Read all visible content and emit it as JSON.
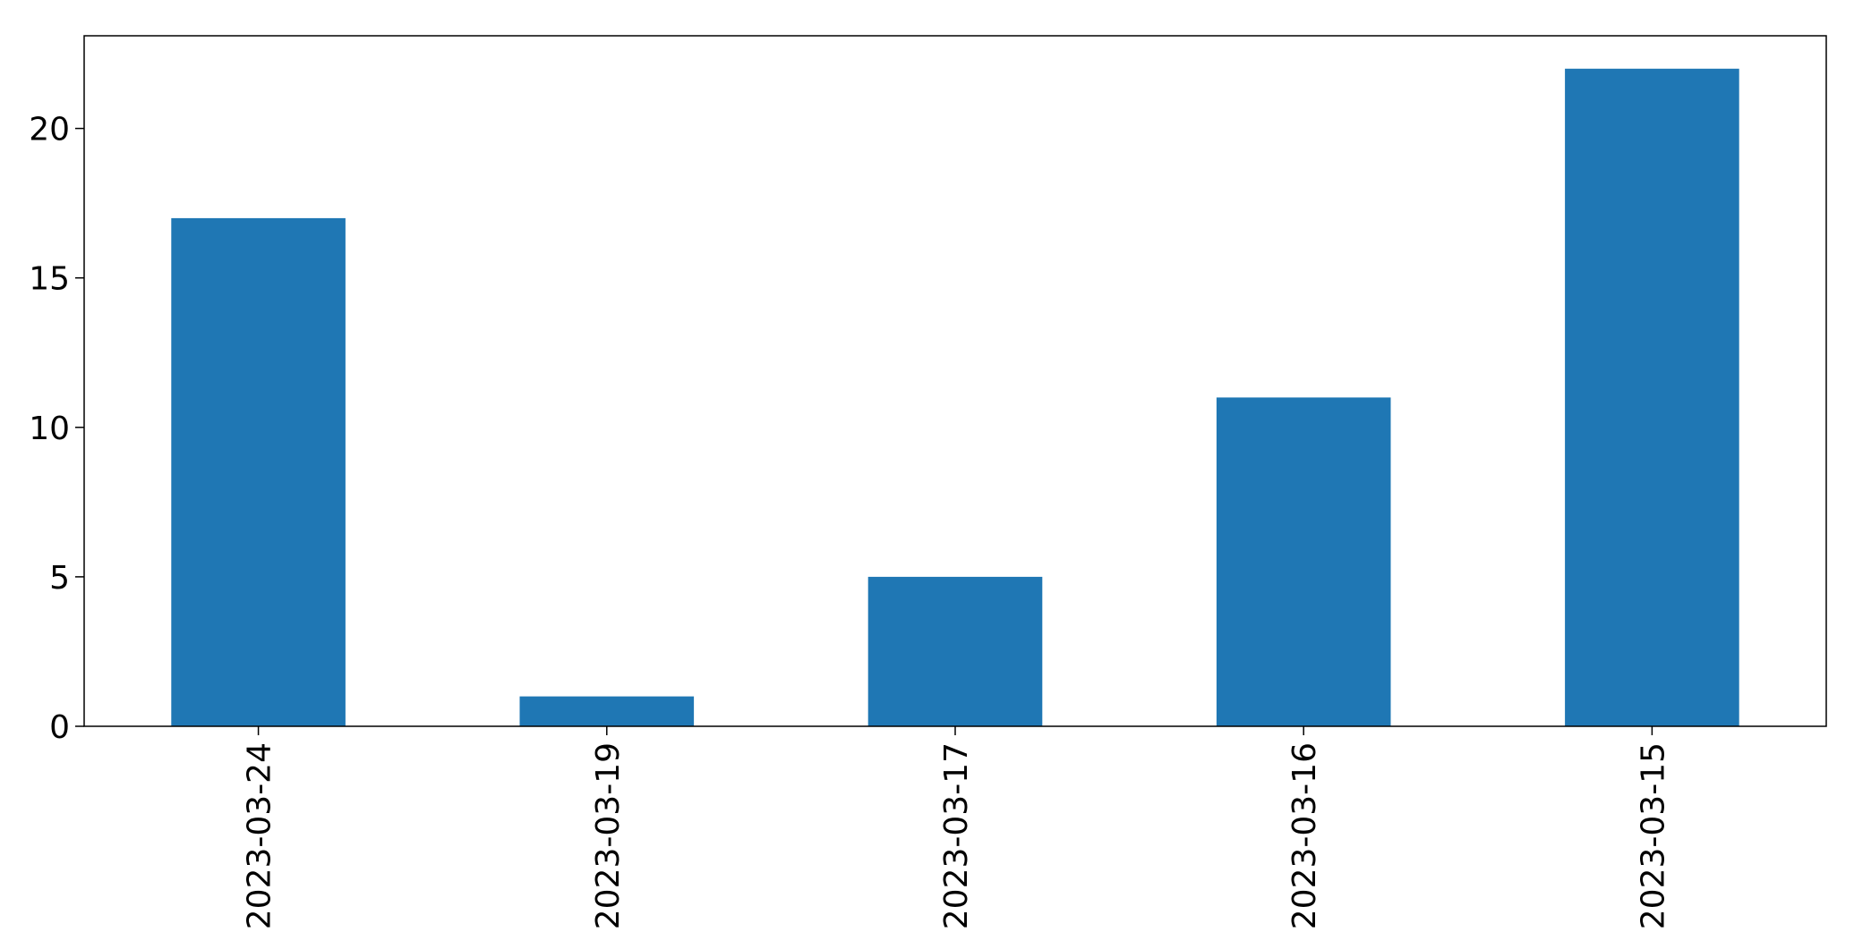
{
  "chart_data": {
    "type": "bar",
    "categories": [
      "2023-03-24",
      "2023-03-19",
      "2023-03-17",
      "2023-03-16",
      "2023-03-15"
    ],
    "values": [
      17,
      1,
      5,
      11,
      22
    ],
    "title": "",
    "xlabel": "",
    "ylabel": "",
    "ylim": [
      0,
      23.1
    ],
    "yticks": [
      0,
      5,
      10,
      15,
      20
    ],
    "grid": false,
    "legend": "none",
    "bar_color": "#1f77b4"
  }
}
